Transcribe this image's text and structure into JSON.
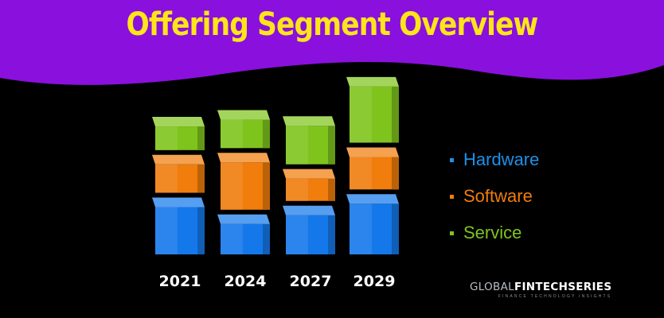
{
  "header": {
    "title": "Offering Segment Overview"
  },
  "colors": {
    "banner": "#8a10de",
    "title": "#ffe51a",
    "hardware": "#1478ea",
    "software": "#f07d0c",
    "service": "#7fc41c"
  },
  "chart_data": {
    "type": "bar",
    "stacked": true,
    "categories": [
      "2021",
      "2024",
      "2027",
      "2029"
    ],
    "series": [
      {
        "name": "Hardware",
        "values": [
          70,
          45,
          58,
          75
        ]
      },
      {
        "name": "Software",
        "values": [
          42,
          70,
          33,
          48
        ]
      },
      {
        "name": "Service",
        "values": [
          35,
          42,
          57,
          83
        ]
      }
    ],
    "title": "Offering Segment Overview",
    "xlabel": "",
    "ylabel": "",
    "legend": "right",
    "grid": false
  },
  "legend": {
    "items": [
      {
        "label": "Hardware",
        "color": "#1e90ea"
      },
      {
        "label": "Software",
        "color": "#f07d0c"
      },
      {
        "label": "Service",
        "color": "#7fc41c"
      }
    ]
  },
  "brand": {
    "name_light": "GLOBAL",
    "name_bold": "FINTECH",
    "name_light2": "SERIES",
    "tagline": "FINANCE TECHNOLOGY INSIGHTS"
  }
}
